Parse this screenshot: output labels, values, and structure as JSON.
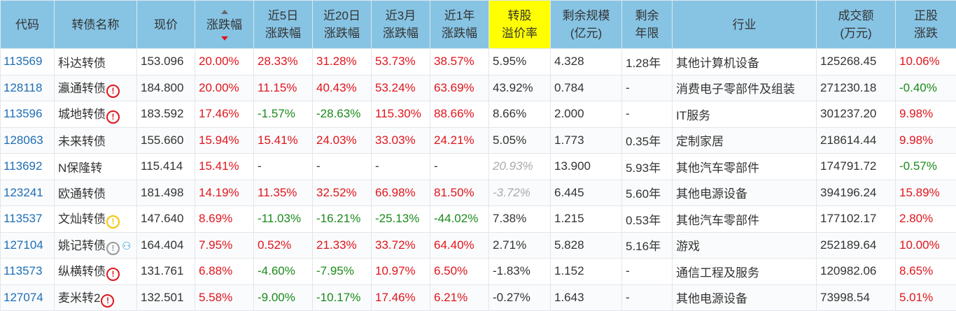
{
  "headers": [
    "代码",
    "转债名称",
    "现价",
    "涨跌幅",
    "近5日\n涨跌幅",
    "近20日\n涨跌幅",
    "近3月\n涨跌幅",
    "近1年\n涨跌幅",
    "转股\n溢价率",
    "剩余规模\n(亿元)",
    "剩余\n年限",
    "行业",
    "成交额\n(万元)",
    "正股\n涨跌"
  ],
  "sort": {
    "column": "涨跌幅",
    "direction": "descending"
  },
  "colors": {
    "header_bg": "#87c4e4",
    "highlight": "#ffff00",
    "up": "#e0151c",
    "down": "#1a8a1a",
    "code": "#1e6eb4"
  },
  "rows": [
    {
      "code": "113569",
      "name": "科达转债",
      "icons": [],
      "price": "153.096",
      "chg": "20.00%",
      "d5": "28.33%",
      "d20": "31.28%",
      "m3": "53.73%",
      "y1": "38.57%",
      "premium": "5.95%",
      "scale": "4.328",
      "years": "1.28年",
      "industry": "其他计算机设备",
      "amount": "125268.45",
      "stock": "10.06%"
    },
    {
      "code": "128118",
      "name": "瀛通转债",
      "icons": [
        "red-alert"
      ],
      "price": "184.800",
      "chg": "20.00%",
      "d5": "11.15%",
      "d20": "40.43%",
      "m3": "53.24%",
      "y1": "63.69%",
      "premium": "43.92%",
      "scale": "0.784",
      "years": "-",
      "industry": "消费电子零部件及组装",
      "amount": "271230.18",
      "stock": "-0.40%"
    },
    {
      "code": "113596",
      "name": "城地转债",
      "icons": [
        "red-alert"
      ],
      "price": "183.592",
      "chg": "17.46%",
      "d5": "-1.57%",
      "d20": "-28.63%",
      "m3": "115.30%",
      "y1": "88.66%",
      "premium": "8.66%",
      "scale": "2.000",
      "years": "-",
      "industry": "IT服务",
      "amount": "301237.20",
      "stock": "9.98%"
    },
    {
      "code": "128063",
      "name": "未来转债",
      "icons": [],
      "price": "155.660",
      "chg": "15.94%",
      "d5": "15.41%",
      "d20": "24.03%",
      "m3": "33.03%",
      "y1": "24.21%",
      "premium": "5.05%",
      "scale": "1.773",
      "years": "0.35年",
      "industry": "定制家居",
      "amount": "218614.44",
      "stock": "9.98%"
    },
    {
      "code": "113692",
      "name": "N保隆转",
      "icons": [],
      "price": "115.414",
      "chg": "15.41%",
      "d5": "-",
      "d20": "-",
      "m3": "-",
      "y1": "-",
      "premium": "20.93%",
      "premium_dim": true,
      "scale": "13.900",
      "years": "5.93年",
      "industry": "其他汽车零部件",
      "amount": "174791.72",
      "stock": "-0.57%"
    },
    {
      "code": "123241",
      "name": "欧通转债",
      "icons": [],
      "price": "181.498",
      "chg": "14.19%",
      "d5": "11.35%",
      "d20": "32.52%",
      "m3": "66.98%",
      "y1": "81.50%",
      "premium": "-3.72%",
      "premium_dim": true,
      "scale": "6.445",
      "years": "5.60年",
      "industry": "其他电源设备",
      "amount": "394196.24",
      "stock": "15.89%"
    },
    {
      "code": "113537",
      "name": "文灿转债",
      "icons": [
        "yellow-alert"
      ],
      "price": "147.640",
      "chg": "8.69%",
      "d5": "-11.03%",
      "d20": "-16.21%",
      "m3": "-25.13%",
      "y1": "-44.02%",
      "premium": "7.38%",
      "scale": "1.215",
      "years": "0.53年",
      "industry": "其他汽车零部件",
      "amount": "177102.17",
      "stock": "2.80%"
    },
    {
      "code": "127104",
      "name": "姚记转债",
      "icons": [
        "gray-alert",
        "person"
      ],
      "price": "164.404",
      "chg": "7.95%",
      "d5": "0.52%",
      "d20": "21.33%",
      "m3": "33.72%",
      "y1": "64.40%",
      "premium": "2.71%",
      "scale": "5.828",
      "years": "5.16年",
      "industry": "游戏",
      "amount": "252189.64",
      "stock": "10.00%"
    },
    {
      "code": "113573",
      "name": "纵横转债",
      "icons": [
        "red-alert"
      ],
      "price": "131.761",
      "chg": "6.88%",
      "d5": "-4.60%",
      "d20": "-7.95%",
      "m3": "10.97%",
      "y1": "6.50%",
      "premium": "-1.83%",
      "scale": "1.152",
      "years": "-",
      "industry": "通信工程及服务",
      "amount": "120982.06",
      "stock": "8.65%"
    },
    {
      "code": "127074",
      "name": "麦米转2",
      "icons": [
        "red-alert"
      ],
      "price": "132.501",
      "chg": "5.58%",
      "d5": "-9.00%",
      "d20": "-10.17%",
      "m3": "17.46%",
      "y1": "6.21%",
      "premium": "-0.27%",
      "scale": "1.643",
      "years": "-",
      "industry": "其他电源设备",
      "amount": "73998.54",
      "stock": "5.01%"
    }
  ]
}
